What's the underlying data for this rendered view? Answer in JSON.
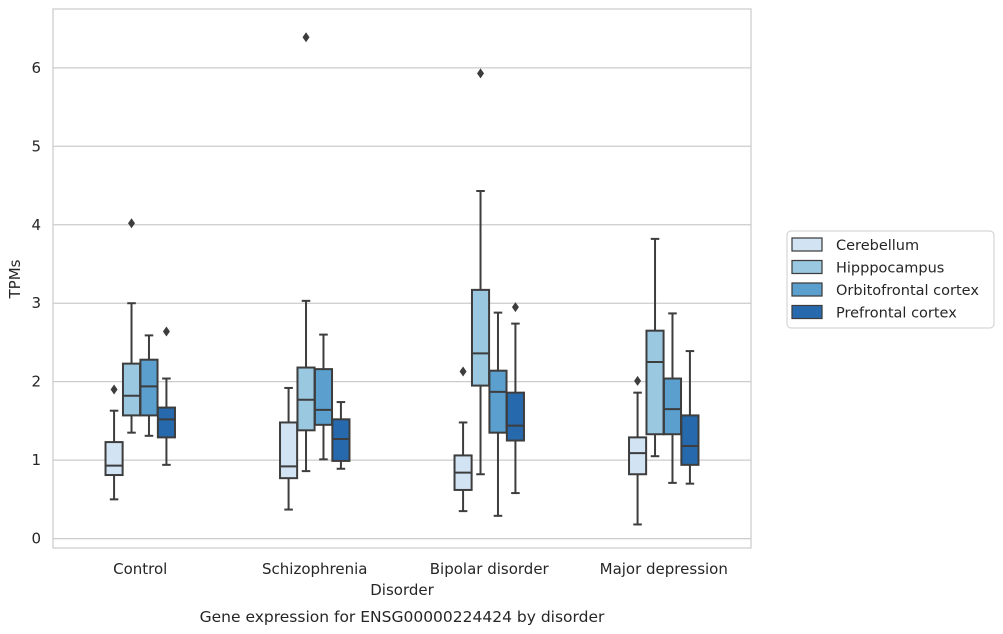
{
  "chart_data": {
    "type": "box",
    "caption": "Gene expression for ENSG00000224424 by disorder",
    "xlabel": "Disorder",
    "ylabel": "TPMs",
    "ylim": [
      -0.12,
      6.75
    ],
    "yticks": [
      0,
      1,
      2,
      3,
      4,
      5,
      6
    ],
    "grid": "horizontal",
    "legend_position": "right",
    "categories": [
      "Control",
      "Schizophrenia",
      "Bipolar disorder",
      "Major depression"
    ],
    "series": [
      {
        "name": "Cerebellum",
        "color": "#d2e3f3",
        "boxes": [
          {
            "whisker_low": 0.5,
            "q1": 0.81,
            "median": 0.93,
            "q3": 1.23,
            "whisker_high": 1.63,
            "outliers": [
              1.9
            ]
          },
          {
            "whisker_low": 0.37,
            "q1": 0.77,
            "median": 0.92,
            "q3": 1.48,
            "whisker_high": 1.92,
            "outliers": []
          },
          {
            "whisker_low": 0.35,
            "q1": 0.62,
            "median": 0.84,
            "q3": 1.06,
            "whisker_high": 1.48,
            "outliers": [
              2.13
            ]
          },
          {
            "whisker_low": 0.18,
            "q1": 0.82,
            "median": 1.09,
            "q3": 1.29,
            "whisker_high": 1.86,
            "outliers": [
              2.01
            ]
          }
        ]
      },
      {
        "name": "Hipppocampus",
        "color": "#9ac8e0",
        "boxes": [
          {
            "whisker_low": 1.35,
            "q1": 1.57,
            "median": 1.82,
            "q3": 2.23,
            "whisker_high": 3.0,
            "outliers": [
              4.02
            ]
          },
          {
            "whisker_low": 0.86,
            "q1": 1.38,
            "median": 1.77,
            "q3": 2.18,
            "whisker_high": 3.03,
            "outliers": [
              6.39
            ]
          },
          {
            "whisker_low": 0.82,
            "q1": 1.95,
            "median": 2.36,
            "q3": 3.17,
            "whisker_high": 4.43,
            "outliers": [
              5.93
            ]
          },
          {
            "whisker_low": 1.05,
            "q1": 1.33,
            "median": 2.25,
            "q3": 2.65,
            "whisker_high": 3.82,
            "outliers": []
          }
        ]
      },
      {
        "name": "Orbitofrontal cortex",
        "color": "#5a9fcd",
        "boxes": [
          {
            "whisker_low": 1.31,
            "q1": 1.57,
            "median": 1.94,
            "q3": 2.28,
            "whisker_high": 2.59,
            "outliers": []
          },
          {
            "whisker_low": 1.01,
            "q1": 1.45,
            "median": 1.64,
            "q3": 2.16,
            "whisker_high": 2.6,
            "outliers": []
          },
          {
            "whisker_low": 0.29,
            "q1": 1.35,
            "median": 1.87,
            "q3": 2.14,
            "whisker_high": 2.88,
            "outliers": []
          },
          {
            "whisker_low": 0.71,
            "q1": 1.33,
            "median": 1.65,
            "q3": 2.04,
            "whisker_high": 2.87,
            "outliers": []
          }
        ]
      },
      {
        "name": "Prefrontal cortex",
        "color": "#2769ad",
        "boxes": [
          {
            "whisker_low": 0.94,
            "q1": 1.29,
            "median": 1.52,
            "q3": 1.67,
            "whisker_high": 2.04,
            "outliers": [
              2.64
            ]
          },
          {
            "whisker_low": 0.89,
            "q1": 0.99,
            "median": 1.27,
            "q3": 1.52,
            "whisker_high": 1.74,
            "outliers": []
          },
          {
            "whisker_low": 0.58,
            "q1": 1.25,
            "median": 1.44,
            "q3": 1.86,
            "whisker_high": 2.74,
            "outliers": [
              2.95
            ]
          },
          {
            "whisker_low": 0.7,
            "q1": 0.94,
            "median": 1.18,
            "q3": 1.57,
            "whisker_high": 2.39,
            "outliers": []
          }
        ]
      }
    ]
  }
}
